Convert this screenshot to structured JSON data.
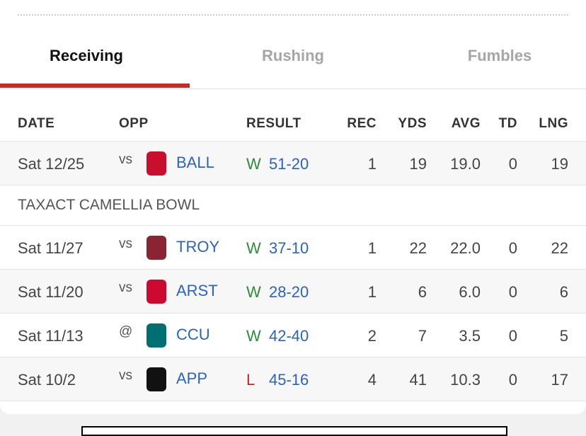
{
  "tabs": [
    "Receiving",
    "Rushing",
    "Fumbles"
  ],
  "table": {
    "columns": [
      "DATE",
      "OPP",
      "RESULT",
      "REC",
      "YDS",
      "AVG",
      "TD",
      "LNG"
    ],
    "rows": [
      {
        "date": "Sat 12/25",
        "site": "vs",
        "opp": "BALL",
        "outcome": "W",
        "score": "51-20",
        "rec": "1",
        "yds": "19",
        "avg": "19.0",
        "td": "0",
        "lng": "19"
      },
      {
        "section": "TAXACT CAMELLIA BOWL"
      },
      {
        "date": "Sat 11/27",
        "site": "vs",
        "opp": "TROY",
        "outcome": "W",
        "score": "37-10",
        "rec": "1",
        "yds": "22",
        "avg": "22.0",
        "td": "0",
        "lng": "22"
      },
      {
        "date": "Sat 11/20",
        "site": "vs",
        "opp": "ARST",
        "outcome": "W",
        "score": "28-20",
        "rec": "1",
        "yds": "6",
        "avg": "6.0",
        "td": "0",
        "lng": "6"
      },
      {
        "date": "Sat 11/13",
        "site": "@",
        "opp": "CCU",
        "outcome": "W",
        "score": "42-40",
        "rec": "2",
        "yds": "7",
        "avg": "3.5",
        "td": "0",
        "lng": "5"
      },
      {
        "date": "Sat 10/2",
        "site": "vs",
        "opp": "APP",
        "outcome": "L",
        "score": "45-16",
        "rec": "4",
        "yds": "41",
        "avg": "10.3",
        "td": "0",
        "lng": "17"
      }
    ]
  }
}
